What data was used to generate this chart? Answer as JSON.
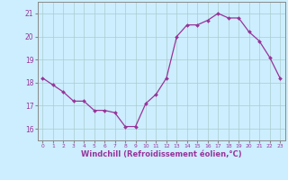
{
  "x": [
    0,
    1,
    2,
    3,
    4,
    5,
    6,
    7,
    8,
    9,
    10,
    11,
    12,
    13,
    14,
    15,
    16,
    17,
    18,
    19,
    20,
    21,
    22,
    23
  ],
  "y": [
    18.2,
    17.9,
    17.6,
    17.2,
    17.2,
    16.8,
    16.8,
    16.7,
    16.1,
    16.1,
    17.1,
    17.5,
    18.2,
    20.0,
    20.5,
    20.5,
    20.7,
    21.0,
    20.8,
    20.8,
    20.2,
    19.8,
    19.1,
    18.2
  ],
  "line_color": "#993399",
  "marker_color": "#993399",
  "bg_color": "#cceeff",
  "grid_color": "#aacccc",
  "axis_color": "#888888",
  "xlabel": "Windchill (Refroidissement éolien,°C)",
  "ylim": [
    15.5,
    21.5
  ],
  "xlim": [
    -0.5,
    23.5
  ],
  "yticks": [
    16,
    17,
    18,
    19,
    20,
    21
  ],
  "xticks": [
    0,
    1,
    2,
    3,
    4,
    5,
    6,
    7,
    8,
    9,
    10,
    11,
    12,
    13,
    14,
    15,
    16,
    17,
    18,
    19,
    20,
    21,
    22,
    23
  ],
  "tick_label_color": "#993399",
  "xlabel_color": "#993399",
  "xlabel_fontsize": 6.0,
  "ytick_fontsize": 5.5,
  "xtick_fontsize": 4.3
}
